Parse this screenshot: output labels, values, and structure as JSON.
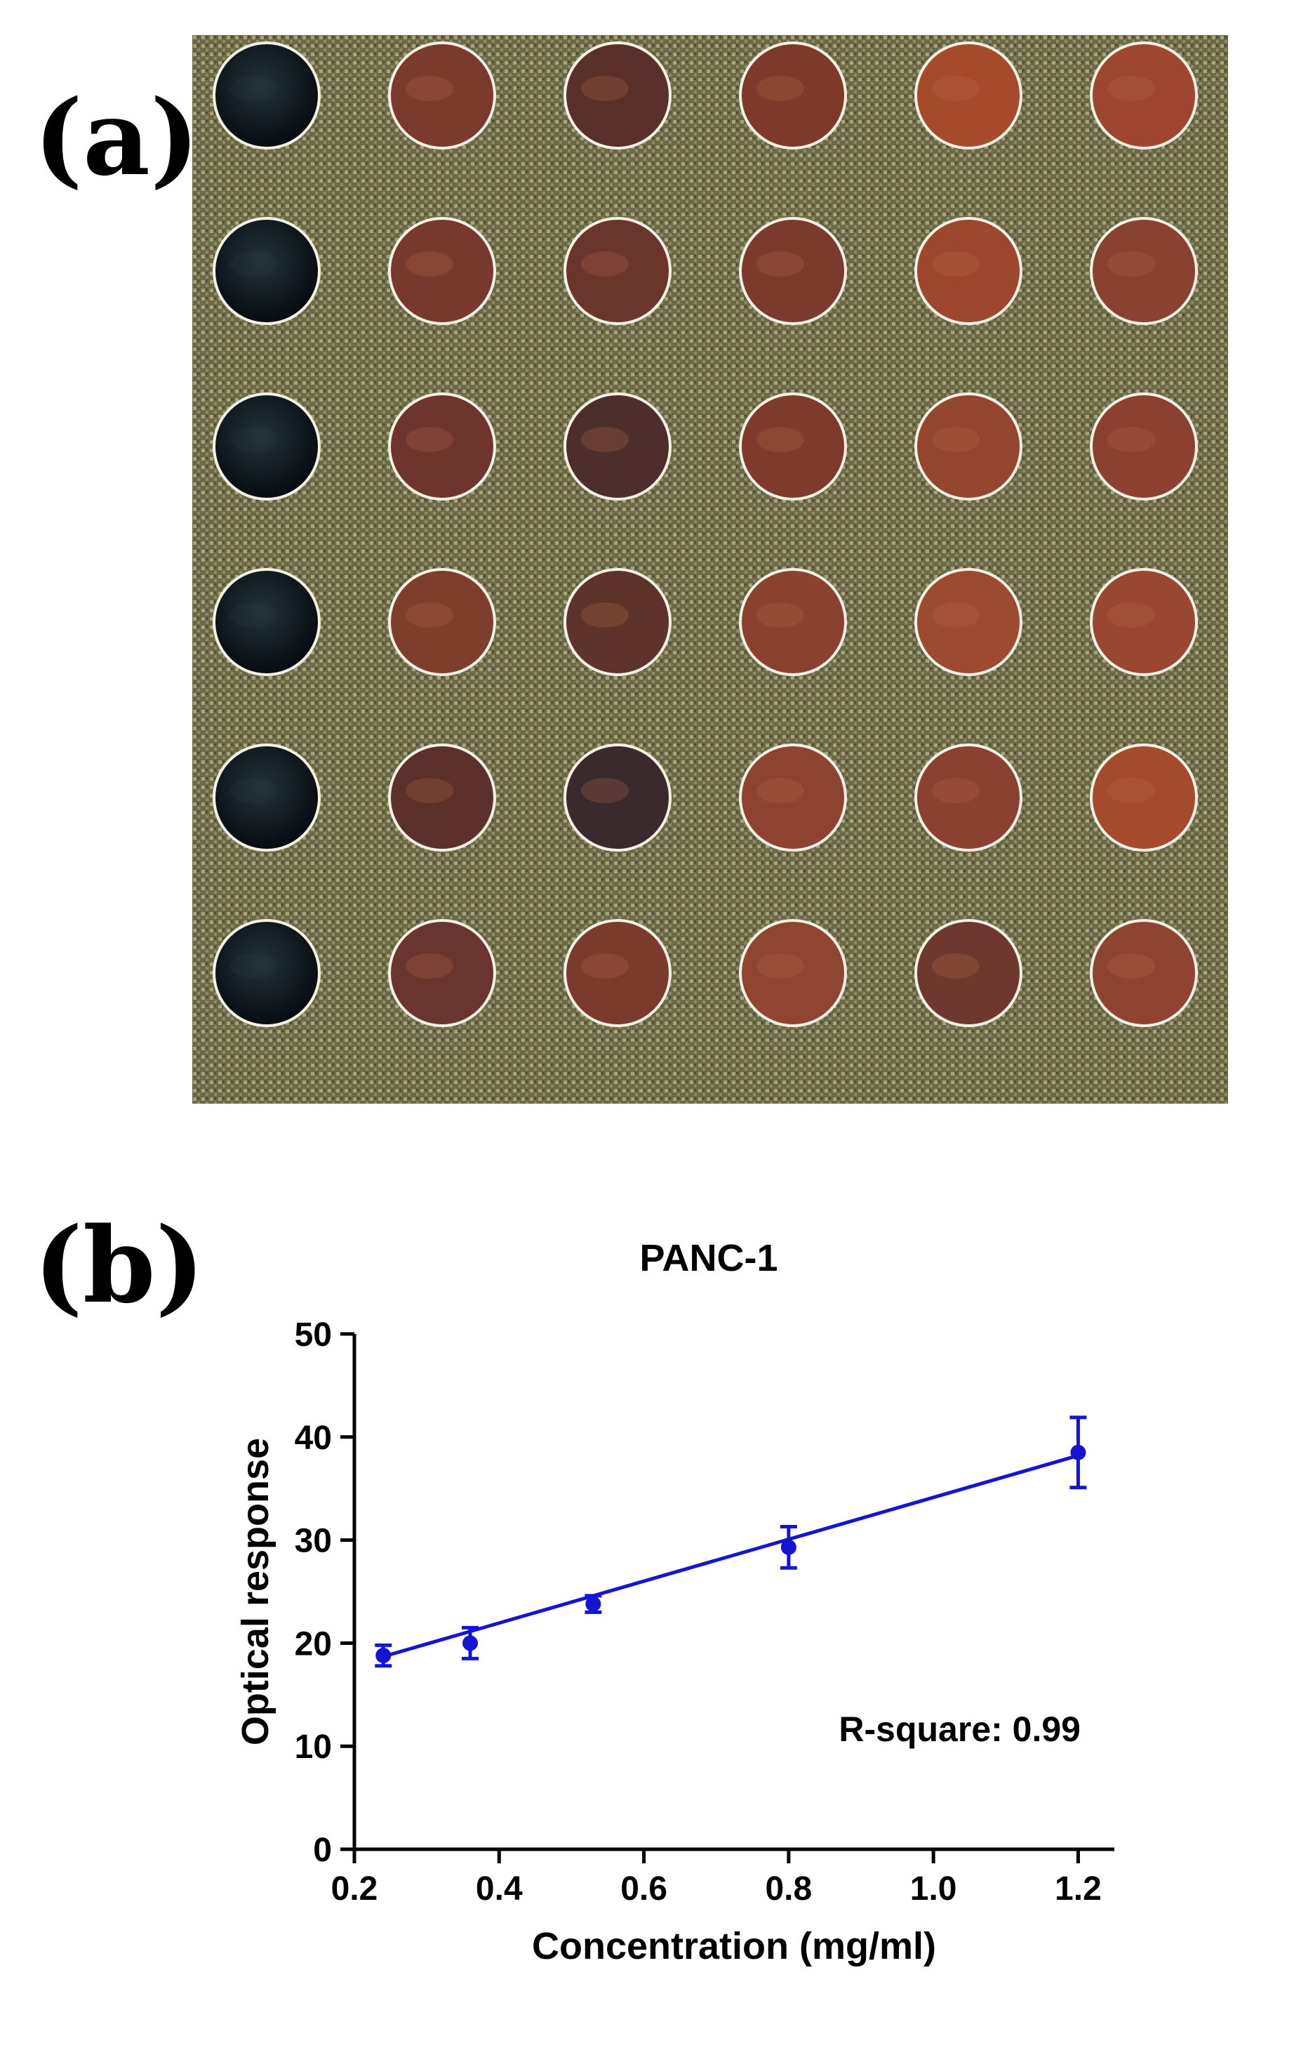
{
  "panels": {
    "a_label": "(a)",
    "b_label": "(b)"
  },
  "plate": {
    "rows": 6,
    "cols": 6,
    "wells": [
      [
        "#0d1418",
        "#7a3a2c",
        "#5a302a",
        "#7d3a2a",
        "#a64a2c",
        "#9e4630"
      ],
      [
        "#0e1519",
        "#77392c",
        "#6a352b",
        "#7a3a2c",
        "#9c472e",
        "#8a4230"
      ],
      [
        "#0c1317",
        "#6d352c",
        "#4e2e2c",
        "#7e3b2b",
        "#94462f",
        "#8c4030"
      ],
      [
        "#101519",
        "#7d3e2c",
        "#5e332b",
        "#8a422e",
        "#9c4a30",
        "#9a4732"
      ],
      [
        "#121a1e",
        "#5c302b",
        "#3a2a2e",
        "#8e4330",
        "#8a4130",
        "#a44b2e"
      ],
      [
        "#0f161a",
        "#6a352e",
        "#7a3a2c",
        "#904530",
        "#6e382e",
        "#8e4430"
      ]
    ],
    "colors": {
      "background": "#706e4a",
      "rim": "#f4f1e4"
    }
  },
  "chart_data": {
    "type": "scatter",
    "title": "PANC-1",
    "xlabel": "Concentration (mg/ml)",
    "ylabel": "Optical response",
    "xlim": [
      0.2,
      1.25
    ],
    "ylim": [
      0,
      50
    ],
    "xticks": [
      "0.2",
      "0.4",
      "0.6",
      "0.8",
      "1.0",
      "1.2"
    ],
    "yticks": [
      "0",
      "10",
      "20",
      "30",
      "40",
      "50"
    ],
    "series": [
      {
        "name": "PANC-1",
        "color": "#1414d2",
        "x": [
          0.24,
          0.36,
          0.53,
          0.8,
          1.2
        ],
        "y": [
          18.8,
          20.0,
          23.8,
          29.3,
          38.5
        ],
        "error": [
          1.0,
          1.5,
          0.8,
          2.0,
          3.4
        ]
      }
    ],
    "fit": {
      "type": "linear",
      "x": [
        0.24,
        1.2
      ],
      "y": [
        18.7,
        38.2
      ]
    },
    "annotation": "R-square: 0.99"
  }
}
